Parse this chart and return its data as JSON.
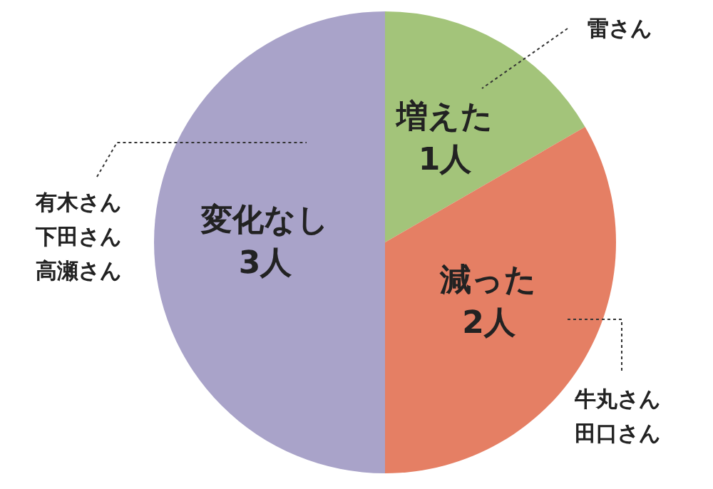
{
  "chart_data": {
    "type": "pie",
    "categories": [
      "増えた",
      "減った",
      "変化なし"
    ],
    "values": [
      1,
      2,
      3
    ],
    "value_labels": [
      "1人",
      "2人",
      "3人"
    ],
    "colors": [
      "#a3c47a",
      "#e57f64",
      "#a9a3c9"
    ],
    "annotations": [
      "雷さん",
      "牛丸さん",
      "田口さん",
      "有木さん",
      "下田さん",
      "高瀬さん"
    ],
    "legend": false
  }
}
